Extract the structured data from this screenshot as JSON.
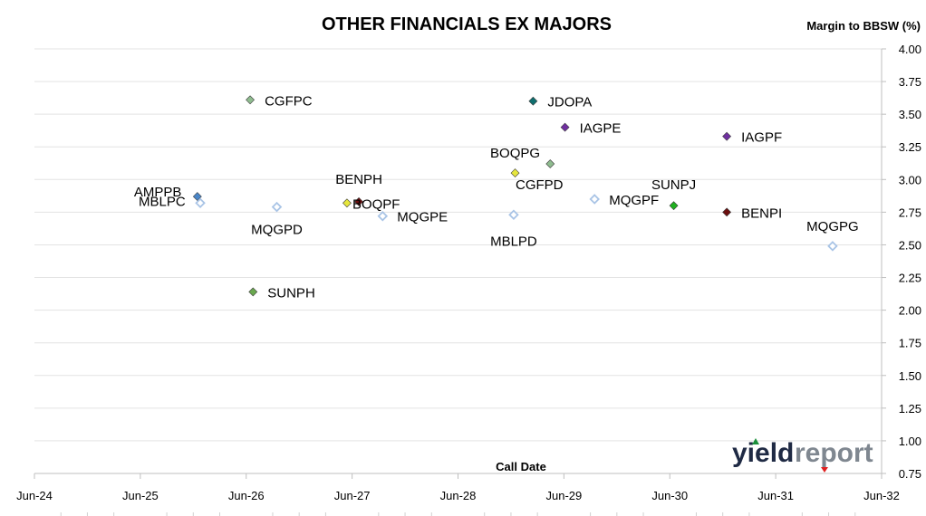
{
  "chart_data": {
    "type": "scatter",
    "title": "OTHER FINANCIALS EX MAJORS",
    "ylabel": "Margin to BBSW (%)",
    "xlabel": "Call Date",
    "ylim": [
      0.75,
      4.0
    ],
    "yticks": [
      "0.75",
      "1.00",
      "1.25",
      "1.50",
      "1.75",
      "2.00",
      "2.25",
      "2.50",
      "2.75",
      "3.00",
      "3.25",
      "3.50",
      "3.75",
      "4.00"
    ],
    "xlim": [
      "2024-06-01",
      "2032-06-01"
    ],
    "xticks": [
      "Jun-24",
      "Jun-25",
      "Jun-26",
      "Jun-27",
      "Jun-28",
      "Jun-29",
      "Jun-30",
      "Jun-31",
      "Jun-32"
    ],
    "grid": "horizontal",
    "points": [
      {
        "label": "AMPPB",
        "x": "2025-12-15",
        "y": 2.87,
        "color": "#4a86c8",
        "hollow": false
      },
      {
        "label": "MBLPC",
        "x": "2025-12-25",
        "y": 2.82,
        "color": "#a9c4e6",
        "hollow": true
      },
      {
        "label": "CGFPC",
        "x": "2026-06-15",
        "y": 3.61,
        "color": "#8fbc8f",
        "hollow": false
      },
      {
        "label": "MQGPD",
        "x": "2026-09-15",
        "y": 2.79,
        "color": "#a9c4e6",
        "hollow": true
      },
      {
        "label": "SUNPH",
        "x": "2026-06-25",
        "y": 2.14,
        "color": "#6aa84f",
        "hollow": false
      },
      {
        "label": "BENPH",
        "x": "2027-06-25",
        "y": 2.83,
        "color": "#6b0f0f",
        "hollow": false
      },
      {
        "label": "BOQPF",
        "x": "2027-05-15",
        "y": 2.82,
        "color": "#e6e63c",
        "hollow": false
      },
      {
        "label": "MQGPE",
        "x": "2027-09-15",
        "y": 2.72,
        "color": "#a9c4e6",
        "hollow": true
      },
      {
        "label": "BOQPG",
        "x": "2028-12-15",
        "y": 3.05,
        "color": "#e6e63c",
        "hollow": false
      },
      {
        "label": "CGFPD",
        "x": "2029-04-15",
        "y": 3.12,
        "color": "#8fbc8f",
        "hollow": false
      },
      {
        "label": "MBLPD",
        "x": "2028-12-10",
        "y": 2.73,
        "color": "#a9c4e6",
        "hollow": true
      },
      {
        "label": "JDOPA",
        "x": "2029-02-15",
        "y": 3.6,
        "color": "#0f6e6e",
        "hollow": false
      },
      {
        "label": "IAGPE",
        "x": "2029-06-05",
        "y": 3.4,
        "color": "#7030a0",
        "hollow": false
      },
      {
        "label": "MQGPF",
        "x": "2029-09-15",
        "y": 2.85,
        "color": "#a9c4e6",
        "hollow": true
      },
      {
        "label": "SUNPJ",
        "x": "2030-06-15",
        "y": 2.8,
        "color": "#1fb01f",
        "hollow": false
      },
      {
        "label": "IAGPF",
        "x": "2030-12-15",
        "y": 3.33,
        "color": "#7030a0",
        "hollow": false
      },
      {
        "label": "BENPI",
        "x": "2030-12-15",
        "y": 2.75,
        "color": "#6b0f0f",
        "hollow": false
      },
      {
        "label": "MQGPG",
        "x": "2031-12-15",
        "y": 2.49,
        "color": "#a9c4e6",
        "hollow": true
      }
    ]
  },
  "logo": {
    "part1": "yield",
    "part2": "report"
  }
}
